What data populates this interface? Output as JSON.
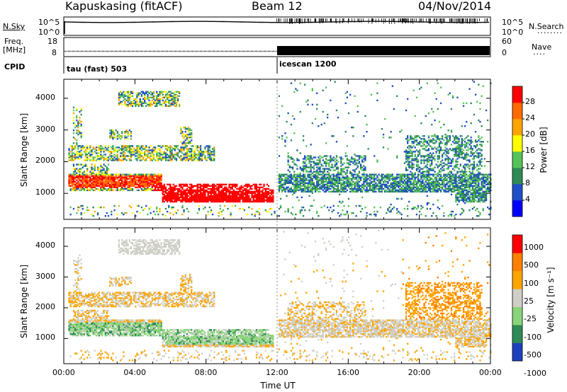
{
  "header": {
    "station": "Kapuskasing (fitACF)",
    "beam": "Beam 12",
    "date": "04/Nov/2014"
  },
  "panels": {
    "nsky": {
      "label": "N.Sky",
      "ticks_left": [
        "10^5",
        "10^0"
      ],
      "ticks_right": [
        "10^5",
        "10^0"
      ],
      "right_label": "N.Search",
      "right_style": "dotted"
    },
    "freq": {
      "label_line1": "Freq.",
      "label_line2": "[MHz]",
      "ticks_left": [
        "18",
        "8"
      ],
      "ticks_right": [
        "60",
        "0"
      ],
      "right_label": "Nave",
      "right_style": "dotted"
    },
    "cpid": {
      "label": "CPID",
      "segments": [
        {
          "text": "tau (fast) 503",
          "start_hour": 0
        },
        {
          "text": "icescan 1200",
          "start_hour": 12
        }
      ]
    }
  },
  "chart_data": [
    {
      "type": "heatmap",
      "quantity": "Power",
      "ylabel": "Slant Range [km]",
      "xlabel": "Time UT",
      "x_range_hours": [
        0,
        24
      ],
      "ylim_km": [
        180,
        4600
      ],
      "yticks": [
        1000,
        2000,
        3000,
        4000
      ],
      "colorbar_label": "Power [dB]",
      "colorbar_ticks": [
        4,
        8,
        12,
        16,
        20,
        24,
        28
      ],
      "colorbar_range": [
        0,
        32
      ],
      "colors": [
        "#0000ff",
        "#1f4fc8",
        "#2e8b57",
        "#57c25a",
        "#ffff00",
        "#ffa500",
        "#ff6a00",
        "#ff0000"
      ]
    },
    {
      "type": "heatmap",
      "quantity": "Velocity",
      "ylabel": "Slant Range [km]",
      "xlabel": "Time UT",
      "x_range_hours": [
        0,
        24
      ],
      "ylim_km": [
        180,
        4600
      ],
      "yticks": [
        1000,
        2000,
        3000,
        4000
      ],
      "colorbar_label": "Velocity [m s⁻¹]",
      "colorbar_ticks": [
        1000,
        500,
        100,
        25,
        -25,
        -100,
        -500,
        -1000
      ],
      "colors": [
        "#1f3fbf",
        "#2e8b57",
        "#8ad47a",
        "#cfcfc7",
        "#ffa500",
        "#ff7f00",
        "#ff0000"
      ]
    }
  ],
  "x_axis": {
    "label": "Time UT",
    "ticks": [
      "00:00",
      "04:00",
      "08:00",
      "12:00",
      "16:00",
      "20:00",
      "00:00"
    ]
  }
}
